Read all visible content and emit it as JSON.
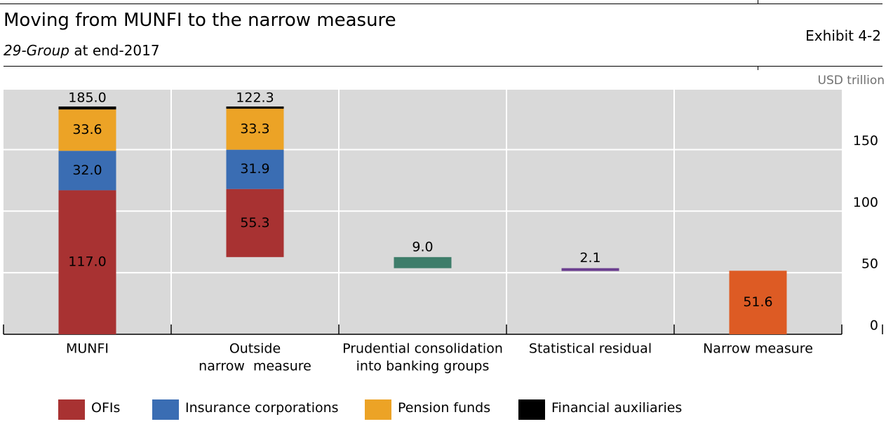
{
  "header": {
    "title": "Moving from MUNFI to the narrow measure",
    "subtitle_italic": "29-Group",
    "subtitle_rest": " at end-2017",
    "exhibit": "Exhibit 4-2",
    "unit": "USD trillion"
  },
  "colors": {
    "ofi": "#a83232",
    "insurance": "#3a6db3",
    "pension": "#eca326",
    "auxiliaries": "#000000",
    "prudential": "#3e7d6a",
    "residual": "#6b3f8f",
    "narrow": "#dd5b24",
    "panel": "#d9d9d9"
  },
  "legend": [
    {
      "label": "OFIs",
      "color": "#a83232"
    },
    {
      "label": "Insurance corporations",
      "color": "#3a6db3"
    },
    {
      "label": "Pension funds",
      "color": "#eca326"
    },
    {
      "label": "Financial auxiliaries",
      "color": "#000000"
    }
  ],
  "chart_data": {
    "type": "bar",
    "subtype": "waterfall",
    "categories": [
      [
        "MUNFI"
      ],
      [
        "Outside",
        "narrow  measure"
      ],
      [
        "Prudential consolidation",
        "into banking groups"
      ],
      [
        "Statistical residual"
      ],
      [
        "Narrow measure"
      ]
    ],
    "ylim": [
      0,
      185
    ],
    "yticks": [
      0,
      50,
      100,
      150
    ],
    "y_axis_side": "right",
    "grid": true,
    "bars": [
      {
        "category": "MUNFI",
        "kind": "stack",
        "base": 0,
        "segments": [
          {
            "name": "OFIs",
            "value": 117.0,
            "label": "117.0",
            "color": "#a83232"
          },
          {
            "name": "Insurance corporations",
            "value": 32.0,
            "label": "32.0",
            "color": "#3a6db3"
          },
          {
            "name": "Pension funds",
            "value": 33.6,
            "label": "33.6",
            "color": "#eca326"
          },
          {
            "name": "Financial auxiliaries",
            "value": 2.4,
            "label": "",
            "color": "#000000"
          }
        ],
        "total_label": "185.0"
      },
      {
        "category": "Outside narrow measure",
        "kind": "stack",
        "base": 62.7,
        "segments": [
          {
            "name": "OFIs",
            "value": 55.3,
            "label": "55.3",
            "color": "#a83232"
          },
          {
            "name": "Insurance corporations",
            "value": 31.9,
            "label": "31.9",
            "color": "#3a6db3"
          },
          {
            "name": "Pension funds",
            "value": 33.3,
            "label": "33.3",
            "color": "#eca326"
          },
          {
            "name": "Financial auxiliaries",
            "value": 1.8,
            "label": "",
            "color": "#000000"
          }
        ],
        "total_label": "122.3"
      },
      {
        "category": "Prudential consolidation into banking groups",
        "kind": "floating",
        "base": 53.7,
        "value": 9.0,
        "label": "9.0",
        "color": "#3e7d6a"
      },
      {
        "category": "Statistical residual",
        "kind": "floating",
        "base": 51.6,
        "value": 2.1,
        "label": "2.1",
        "color": "#6b3f8f"
      },
      {
        "category": "Narrow measure",
        "kind": "stack",
        "base": 0,
        "segments": [
          {
            "name": "Narrow measure",
            "value": 51.6,
            "label": "51.6",
            "color": "#dd5b24"
          }
        ],
        "total_label": ""
      }
    ]
  }
}
